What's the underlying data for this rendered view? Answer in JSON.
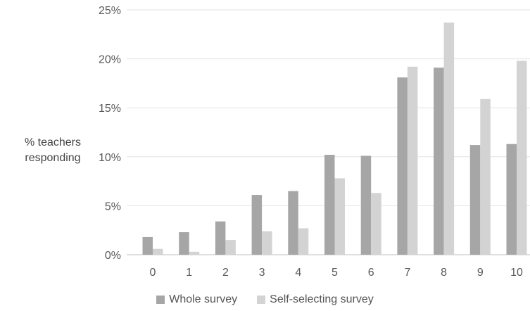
{
  "chart_data": {
    "type": "bar",
    "categories": [
      "0",
      "1",
      "2",
      "3",
      "4",
      "5",
      "6",
      "7",
      "8",
      "9",
      "10"
    ],
    "series": [
      {
        "name": "Whole survey",
        "color": "#a6a6a6",
        "values": [
          1.8,
          2.3,
          3.4,
          6.1,
          6.5,
          10.2,
          10.1,
          18.1,
          19.1,
          11.2,
          11.3
        ]
      },
      {
        "name": "Self-selecting survey",
        "color": "#d3d3d3",
        "values": [
          0.6,
          0.3,
          1.5,
          2.4,
          2.7,
          7.8,
          6.3,
          19.2,
          23.7,
          15.9,
          19.8
        ]
      }
    ],
    "ylabel_lines": [
      "% teachers",
      "responding"
    ],
    "xlabel": "",
    "ylim": [
      0,
      25
    ],
    "yticks": [
      0,
      5,
      10,
      15,
      20,
      25
    ],
    "ytick_labels": [
      "0%",
      "5%",
      "10%",
      "15%",
      "20%",
      "25%"
    ],
    "grid": true,
    "legend_position": "bottom"
  }
}
